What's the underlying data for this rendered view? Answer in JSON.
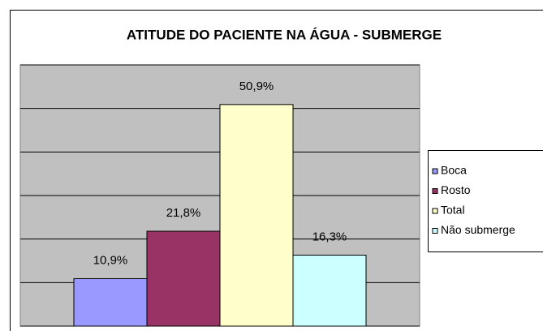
{
  "chart_data": {
    "type": "bar",
    "title": "ATITUDE DO PACIENTE NA ÁGUA - SUBMERGE",
    "series": [
      {
        "name": "Boca",
        "color": "#9999ff",
        "values": [
          10.9
        ],
        "value_labels": [
          "10,9%"
        ]
      },
      {
        "name": "Rosto",
        "color": "#993366",
        "values": [
          21.8
        ],
        "value_labels": [
          "21,8%"
        ]
      },
      {
        "name": "Total",
        "color": "#ffffcc",
        "values": [
          50.9
        ],
        "value_labels": [
          "50,9%"
        ]
      },
      {
        "name": "Não submerge",
        "color": "#ccffff",
        "values": [
          16.3
        ],
        "value_labels": [
          "16,3%"
        ]
      }
    ],
    "ylim": [
      0,
      60
    ],
    "yticks": [
      0,
      10,
      20,
      30,
      40,
      50,
      60
    ],
    "grid": true,
    "legend": "right"
  }
}
